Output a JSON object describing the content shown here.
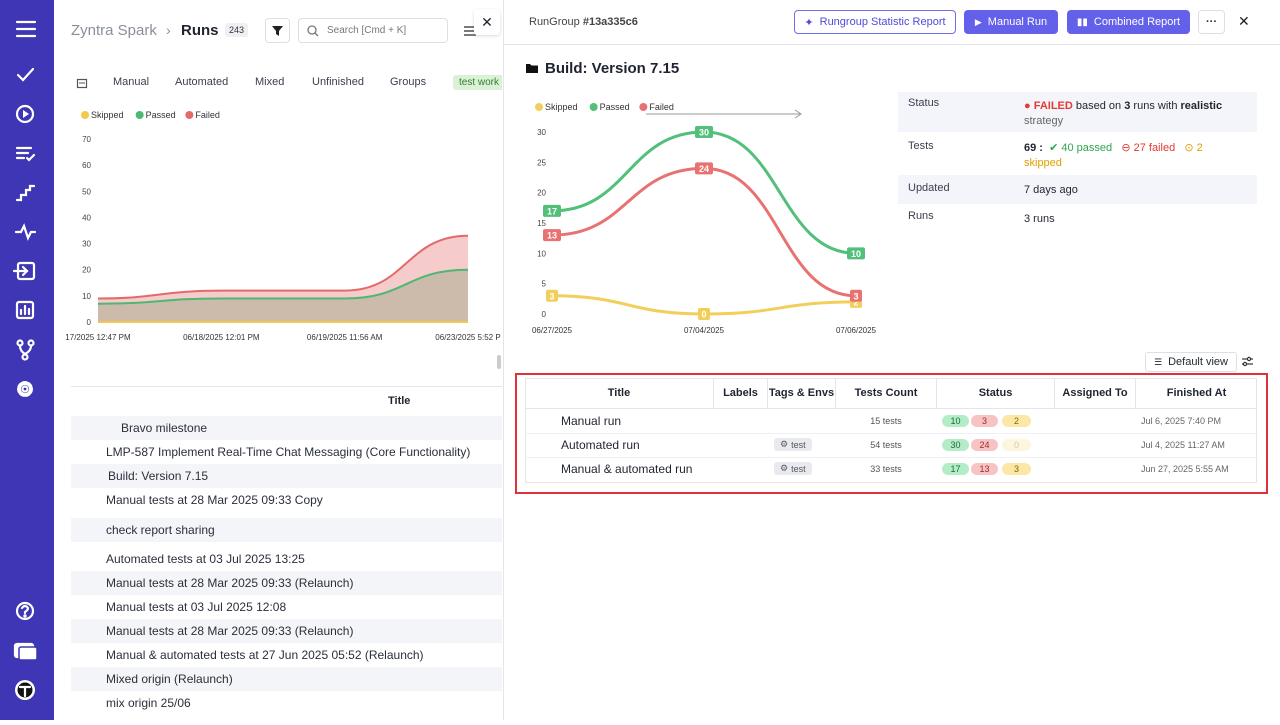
{
  "left_panel": {
    "project": "Zyntra Spark",
    "page": "Runs",
    "runs_count": 243,
    "search_placeholder": "Search [Cmd + K]",
    "tabs": [
      "Manual",
      "Automated",
      "Mixed",
      "Unfinished",
      "Groups"
    ],
    "tag": "test work",
    "table_header": "Title",
    "rows": [
      "Bravo milestone",
      "LMP-587 Implement Real-Time Chat Messaging (Core Functionality)",
      "Build: Version 7.15",
      "Manual tests at 28 Mar 2025 09:33 Copy",
      "check report sharing",
      "Automated tests at 03 Jul 2025 13:25",
      "Manual tests at 28 Mar 2025 09:33 (Relaunch)",
      "Manual tests at 03 Jul 2025 12:08",
      "Manual tests at 28 Mar 2025 09:33 (Relaunch)",
      "Manual & automated tests at 27 Jun 2025 05:52 (Relaunch)",
      "Mixed origin (Relaunch)",
      "mix origin 25/06"
    ]
  },
  "right_panel": {
    "run_group_label": "RunGroup",
    "run_group_id": "#13a335c6",
    "buttons": [
      "Rungroup Statistic Report",
      "Manual Run",
      "Combined Report"
    ],
    "title": "Build: Version 7.15",
    "summary": {
      "status": {
        "label": "Status",
        "result": "FAILED",
        "based_on": "based on",
        "runs": 3,
        "runs_with": "runs with",
        "strategy": "realistic",
        "strategy_word": "strategy"
      },
      "tests": {
        "label": "Tests",
        "total": "69 :",
        "passed": "40 passed",
        "failed": "27 failed",
        "skipped": "2 skipped"
      },
      "updated": {
        "label": "Updated",
        "value": "7 days ago"
      },
      "runs": {
        "label": "Runs",
        "value": "3 runs"
      }
    },
    "view_button": "Default view",
    "table": {
      "columns": [
        "Title",
        "Labels",
        "Tags & Envs",
        "Tests Count",
        "Status",
        "Assigned To",
        "Finished At"
      ],
      "rows": [
        {
          "title": "Manual run",
          "tests_count": "15 tests",
          "status": [
            10,
            3,
            2
          ],
          "finished_at": "Jul 6, 2025 7:40 PM"
        },
        {
          "title": "Automated run",
          "tag": "test",
          "tests_count": "54 tests",
          "status": [
            30,
            24,
            0
          ],
          "finished_at": "Jul 4, 2025 11:27 AM"
        },
        {
          "title": "Manual & automated run",
          "tag": "test",
          "tests_count": "33 tests",
          "status": [
            17,
            13,
            3
          ],
          "finished_at": "Jun 27, 2025 5:55 AM"
        }
      ]
    }
  },
  "chart_data": [
    {
      "type": "line",
      "area": true,
      "legend": "top-left",
      "categories": [
        "17/2025 12:47 PM",
        "06/18/2025 12:01 PM",
        "06/19/2025 11:56 AM",
        "06/23/2025 5:52 P"
      ],
      "series": [
        {
          "name": "Skipped",
          "color": "#f2c94c",
          "values": [
            0,
            0,
            0,
            0
          ]
        },
        {
          "name": "Passed",
          "color": "#4cb872",
          "values": [
            7,
            9,
            9,
            20
          ]
        },
        {
          "name": "Failed",
          "color": "#e36a6a",
          "values": [
            9,
            12,
            12,
            33
          ]
        }
      ],
      "ylim": [
        0,
        70
      ],
      "yticks": [
        0,
        10,
        20,
        30,
        40,
        50,
        60,
        70
      ],
      "grid": false
    },
    {
      "type": "line",
      "area": false,
      "data_labels": true,
      "legend": "top-left",
      "categories": [
        "06/27/2025",
        "07/04/2025",
        "07/06/2025"
      ],
      "series": [
        {
          "name": "Skipped",
          "color": "#f2cf5b",
          "values": [
            3,
            0,
            2
          ]
        },
        {
          "name": "Passed",
          "color": "#52c07a",
          "values": [
            17,
            30,
            10
          ]
        },
        {
          "name": "Failed",
          "color": "#e87272",
          "values": [
            13,
            24,
            3
          ]
        }
      ],
      "ylim": [
        0,
        30
      ],
      "yticks": [
        0,
        5,
        10,
        15,
        20,
        25,
        30
      ],
      "grid": false
    }
  ]
}
